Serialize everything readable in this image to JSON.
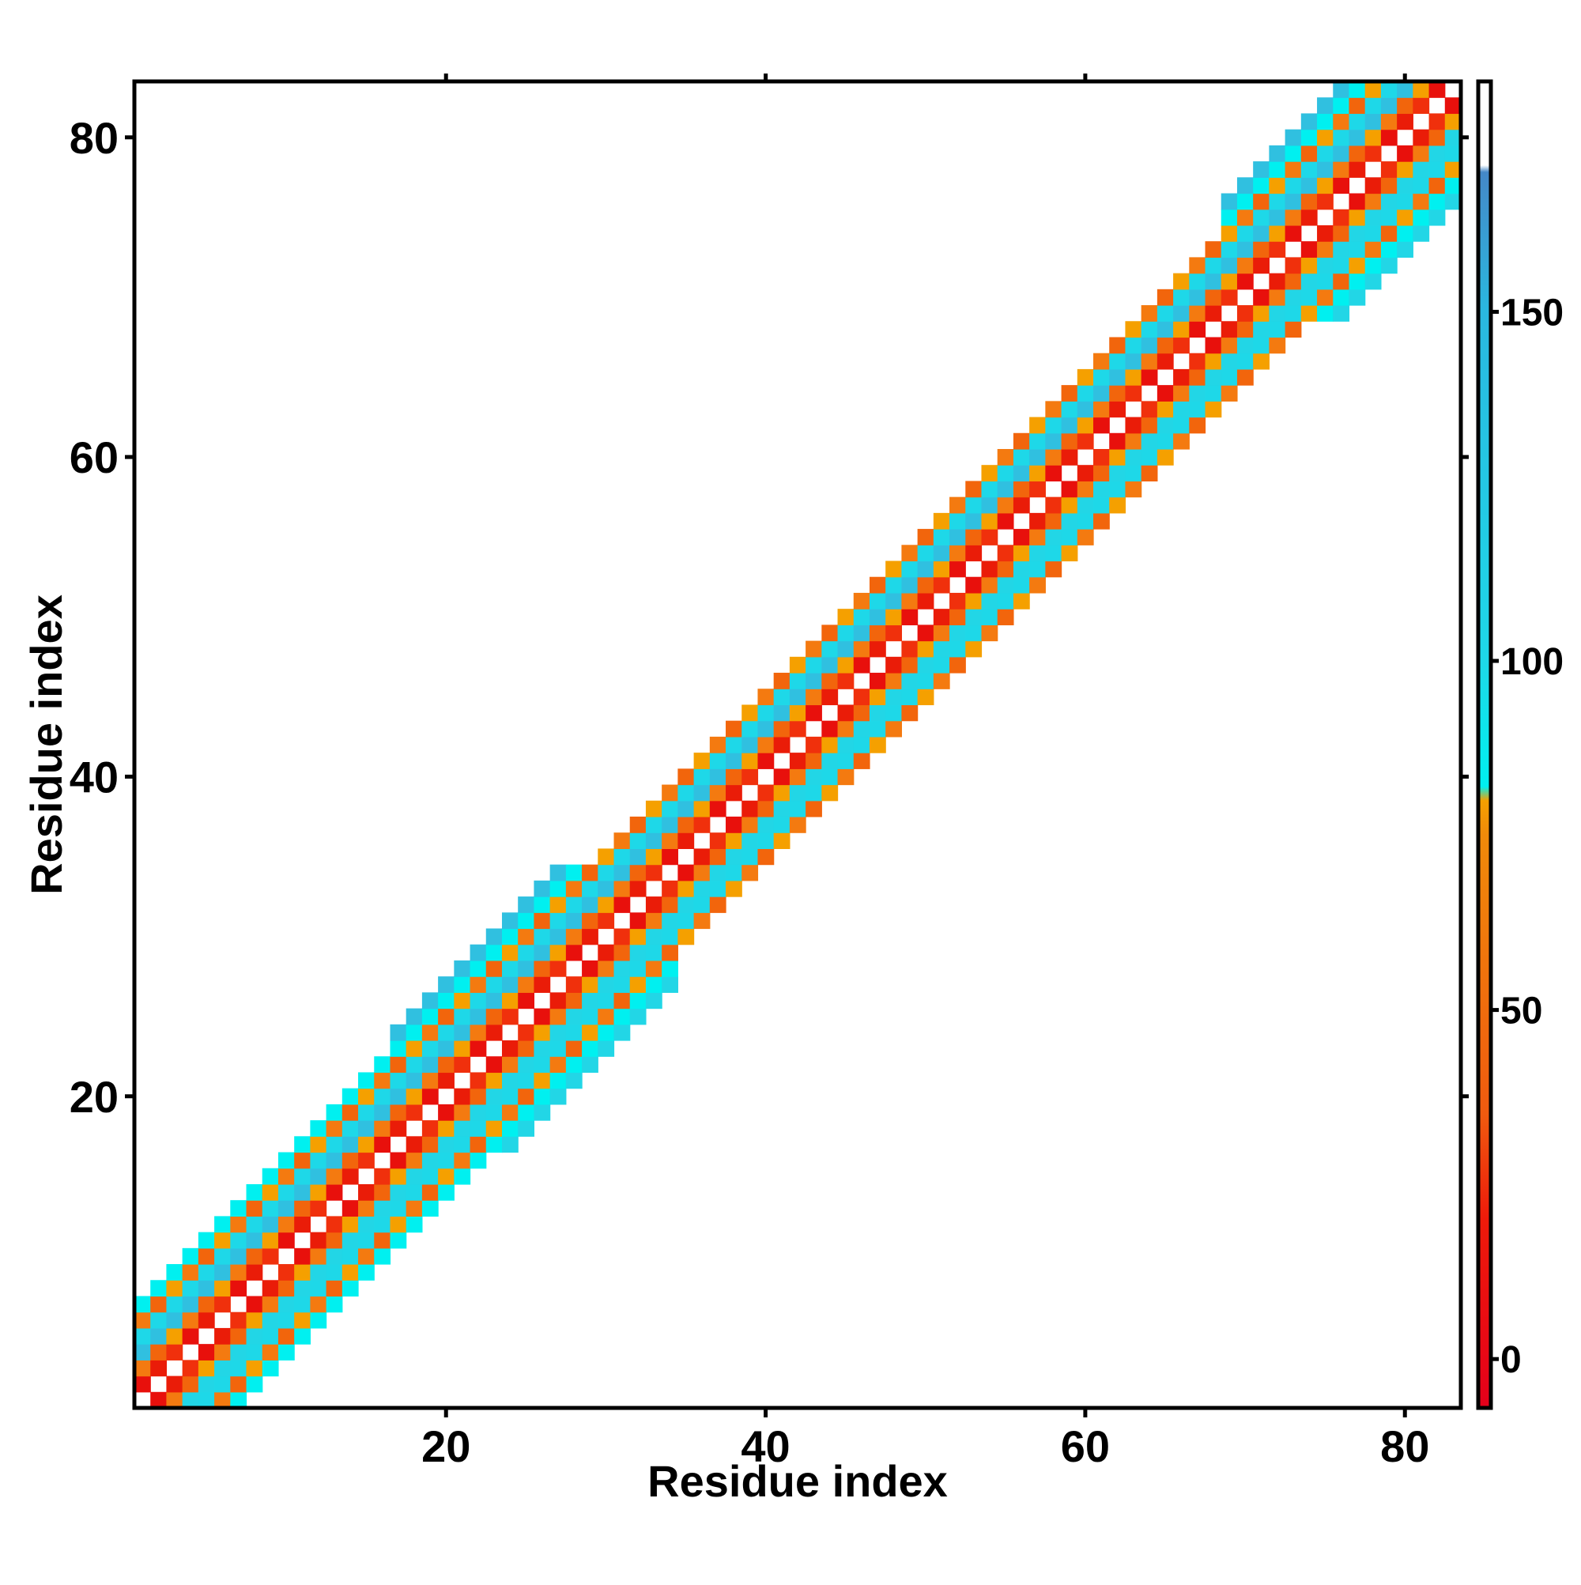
{
  "chart_data": {
    "type": "heatmap",
    "xlabel": "Residue index",
    "ylabel": "Residue index",
    "x_range": [
      0.5,
      83.5
    ],
    "y_range": [
      0.5,
      83.5
    ],
    "x_ticks": [
      20,
      40,
      60,
      80
    ],
    "y_ticks": [
      20,
      40,
      60,
      80
    ],
    "colorbar": {
      "range": [
        -7,
        183
      ],
      "ticks": [
        0,
        50,
        100,
        150
      ],
      "stops": [
        {
          "value": -7,
          "color": "#e5001a"
        },
        {
          "value": 20,
          "color": "#ee1a0a"
        },
        {
          "value": 35,
          "color": "#f05a0f"
        },
        {
          "value": 75,
          "color": "#f08a0a"
        },
        {
          "value": 80,
          "color": "#f5a000"
        },
        {
          "value": 82,
          "color": "#00f0f0"
        },
        {
          "value": 100,
          "color": "#1ed8e8"
        },
        {
          "value": 150,
          "color": "#2ab8e0"
        },
        {
          "value": 170,
          "color": "#4488c8"
        },
        {
          "value": 171,
          "color": "#ffffff"
        },
        {
          "value": 183,
          "color": "#ffffff"
        }
      ]
    },
    "band": {
      "diagonal_empty": true,
      "offset_step": 1,
      "max_offset": 8,
      "widths": [
        {
          "from": 1,
          "to": 16,
          "half_width": 6
        },
        {
          "from": 17,
          "to": 34,
          "half_width": 7
        },
        {
          "from": 35,
          "to": 68,
          "half_width": 5
        },
        {
          "from": 69,
          "to": 83,
          "half_width": 7
        }
      ],
      "pattern": {
        "offset_1": "red",
        "offset_2": "orange",
        "offset_3": "cyan",
        "offset_4": "cyan",
        "offset_5": "orange",
        "offset_6": "cyan",
        "offset_7": "cyan"
      }
    }
  }
}
